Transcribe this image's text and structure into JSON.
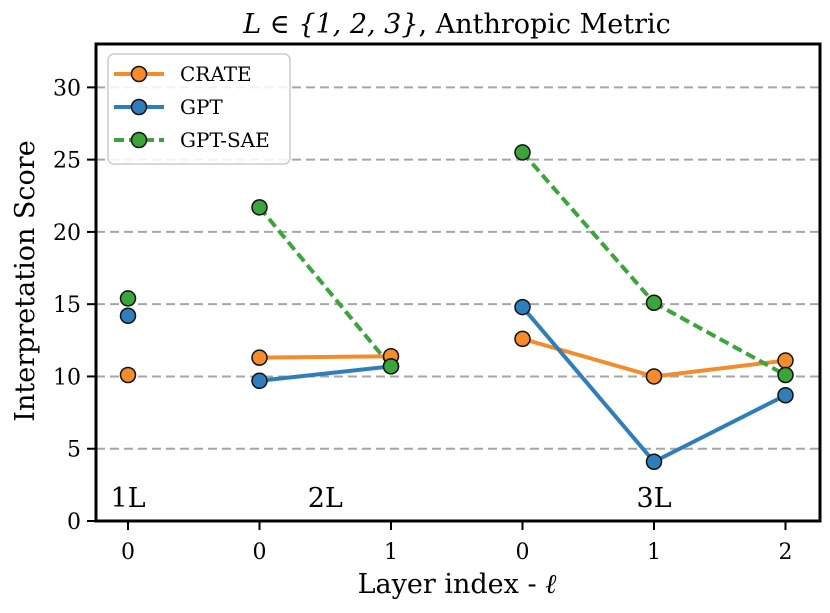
{
  "chart_data": {
    "type": "line",
    "title_math": "L ∈ {1, 2, 3}",
    "title_rest": ", Anthropic Metric",
    "xlabel": "Layer index - ",
    "xlabel_symbol": "ℓ",
    "ylabel": "Interpretation Score",
    "ylim": [
      0,
      33
    ],
    "yticks": [
      0,
      5,
      10,
      15,
      20,
      25,
      30
    ],
    "grid": "horizontal dashed",
    "legend_position": "top-left",
    "x_positions": [
      0,
      1,
      2,
      3,
      4,
      5
    ],
    "x_tick_labels": [
      "0",
      "0",
      "1",
      "0",
      "1",
      "2"
    ],
    "groups": [
      {
        "label": "1L",
        "positions": [
          0
        ]
      },
      {
        "label": "2L",
        "positions": [
          1,
          2
        ]
      },
      {
        "label": "3L",
        "positions": [
          3,
          4,
          5
        ]
      }
    ],
    "series": [
      {
        "name": "CRATE",
        "color": "#f58b2b",
        "line_style": "solid",
        "values": [
          10.1,
          11.3,
          11.4,
          12.6,
          10.0,
          11.1
        ]
      },
      {
        "name": "GPT",
        "color": "#2e7ebc",
        "line_style": "solid",
        "values": [
          14.2,
          9.7,
          10.7,
          14.8,
          4.1,
          8.7
        ]
      },
      {
        "name": "GPT-SAE",
        "color": "#3aa53a",
        "line_style": "dashed",
        "values": [
          15.4,
          21.7,
          10.7,
          25.5,
          15.1,
          10.1
        ]
      }
    ]
  }
}
